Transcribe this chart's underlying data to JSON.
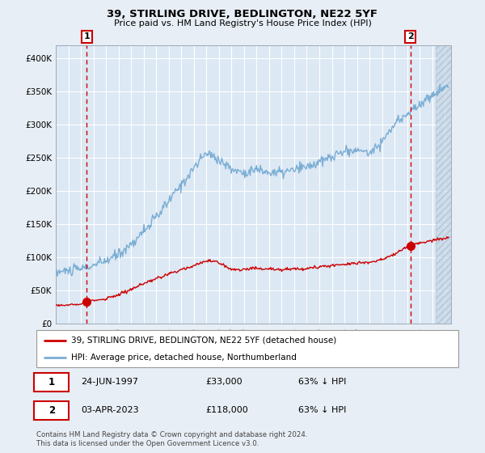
{
  "title_line1": "39, STIRLING DRIVE, BEDLINGTON, NE22 5YF",
  "title_line2": "Price paid vs. HM Land Registry's House Price Index (HPI)",
  "xlim_start": 1995.0,
  "xlim_end": 2026.5,
  "ylim_min": 0,
  "ylim_max": 420000,
  "yticks": [
    0,
    50000,
    100000,
    150000,
    200000,
    250000,
    300000,
    350000,
    400000
  ],
  "ytick_labels": [
    "£0",
    "£50K",
    "£100K",
    "£150K",
    "£200K",
    "£250K",
    "£300K",
    "£350K",
    "£400K"
  ],
  "purchase1_x": 1997.48,
  "purchase1_y": 33000,
  "purchase2_x": 2023.25,
  "purchase2_y": 118000,
  "hatch_start": 2025.3,
  "legend_label1": "39, STIRLING DRIVE, BEDLINGTON, NE22 5YF (detached house)",
  "legend_label2": "HPI: Average price, detached house, Northumberland",
  "annotation1_label": "1",
  "annotation2_label": "2",
  "annot1_date": "24-JUN-1997",
  "annot1_price": "£33,000",
  "annot1_hpi": "63% ↓ HPI",
  "annot2_date": "03-APR-2023",
  "annot2_price": "£118,000",
  "annot2_hpi": "63% ↓ HPI",
  "footer": "Contains HM Land Registry data © Crown copyright and database right 2024.\nThis data is licensed under the Open Government Licence v3.0.",
  "fig_bg_color": "#e8eef5",
  "plot_bg_color": "#dce8f4",
  "grid_color": "#ffffff",
  "hpi_line_color": "#7aadd4",
  "price_line_color": "#cc0000",
  "purchase_dot_color": "#cc0000",
  "vline_color": "#cc0000",
  "hatch_face_color": "#c8d8e8",
  "hatch_edge_color": "#aabbc8"
}
